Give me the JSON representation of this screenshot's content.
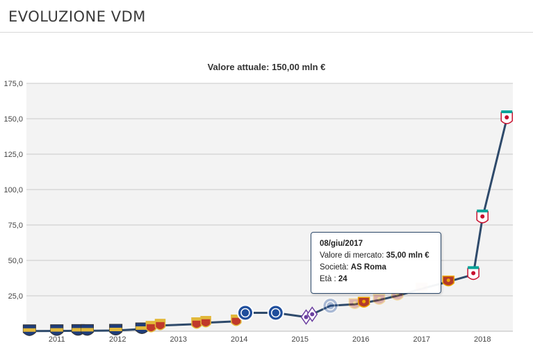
{
  "header": {
    "title": "EVOLUZIONE VDM"
  },
  "chart_data": {
    "type": "line",
    "title": "Valore attuale: 150,00 mln €",
    "xlabel": "",
    "ylabel": "",
    "ylim": [
      0,
      175
    ],
    "xlim": [
      2010.5,
      2018.5
    ],
    "y_ticks": [
      25,
      50,
      75,
      100,
      125,
      150,
      175
    ],
    "y_tick_labels": [
      "25,0",
      "50,0",
      "75,0",
      "100,0",
      "125,0",
      "150,0",
      "175,0"
    ],
    "x_ticks": [
      2011,
      2012,
      2013,
      2014,
      2015,
      2016,
      2017,
      2018
    ],
    "x_tick_labels": [
      "2011",
      "2012",
      "2013",
      "2014",
      "2015",
      "2016",
      "2017",
      "2018"
    ],
    "grid": true,
    "line_color": "#2e4a6b",
    "series": [
      {
        "points": [
          {
            "x": 2010.55,
            "y": 0.1,
            "club": "club-a"
          },
          {
            "x": 2011.0,
            "y": 0.2,
            "club": "club-a"
          },
          {
            "x": 2011.35,
            "y": 0.3,
            "club": "club-a"
          },
          {
            "x": 2011.5,
            "y": 0.3,
            "club": "club-a"
          },
          {
            "x": 2011.97,
            "y": 0.5,
            "club": "club-a"
          },
          {
            "x": 2012.4,
            "y": 1.5,
            "club": "club-a"
          },
          {
            "x": 2012.55,
            "y": 2.5,
            "club": "club-b"
          },
          {
            "x": 2012.7,
            "y": 4,
            "club": "club-b"
          },
          {
            "x": 2013.3,
            "y": 5,
            "club": "club-b"
          },
          {
            "x": 2013.45,
            "y": 6,
            "club": "club-b"
          },
          {
            "x": 2013.95,
            "y": 7,
            "club": "club-b"
          },
          {
            "x": 2014.1,
            "y": 13,
            "club": "chelsea"
          },
          {
            "x": 2014.6,
            "y": 13,
            "club": "chelsea"
          },
          {
            "x": 2015.1,
            "y": 10,
            "club": "fiorentina"
          },
          {
            "x": 2015.2,
            "y": 12,
            "club": "fiorentina"
          },
          {
            "x": 2015.5,
            "y": 18,
            "club": "chelsea"
          },
          {
            "x": 2015.9,
            "y": 19,
            "club": "roma"
          },
          {
            "x": 2016.05,
            "y": 20,
            "club": "roma"
          },
          {
            "x": 2016.3,
            "y": 22,
            "club": "roma"
          },
          {
            "x": 2016.6,
            "y": 25,
            "club": "roma"
          },
          {
            "x": 2017.0,
            "y": 30,
            "club": "roma"
          },
          {
            "x": 2017.44,
            "y": 35,
            "club": "roma"
          },
          {
            "x": 2017.85,
            "y": 40,
            "club": "liverpool"
          },
          {
            "x": 2018.0,
            "y": 80,
            "club": "liverpool"
          },
          {
            "x": 2018.4,
            "y": 150,
            "club": "liverpool"
          }
        ]
      }
    ],
    "club_colors": {
      "club-a": {
        "primary": "#1f3d7a",
        "secondary": "#e2b83a"
      },
      "club-b": {
        "primary": "#c0392b",
        "secondary": "#e2b83a"
      },
      "chelsea": {
        "primary": "#1f4e9c",
        "secondary": "#ffffff"
      },
      "fiorentina": {
        "primary": "#6b3fa0",
        "secondary": "#ffffff"
      },
      "roma": {
        "primary": "#b23a2a",
        "secondary": "#f0a500"
      },
      "liverpool": {
        "primary": "#c8102e",
        "secondary": "#00a398"
      }
    },
    "faded_points": [
      15,
      16,
      18,
      19,
      20
    ],
    "tooltip": {
      "date": "08/giu/2017",
      "value_label": "Valore di mercato:",
      "value": "35,00 mln €",
      "club_label": "Società:",
      "club": "AS Roma",
      "age_label": "Età :",
      "age": "24"
    }
  }
}
